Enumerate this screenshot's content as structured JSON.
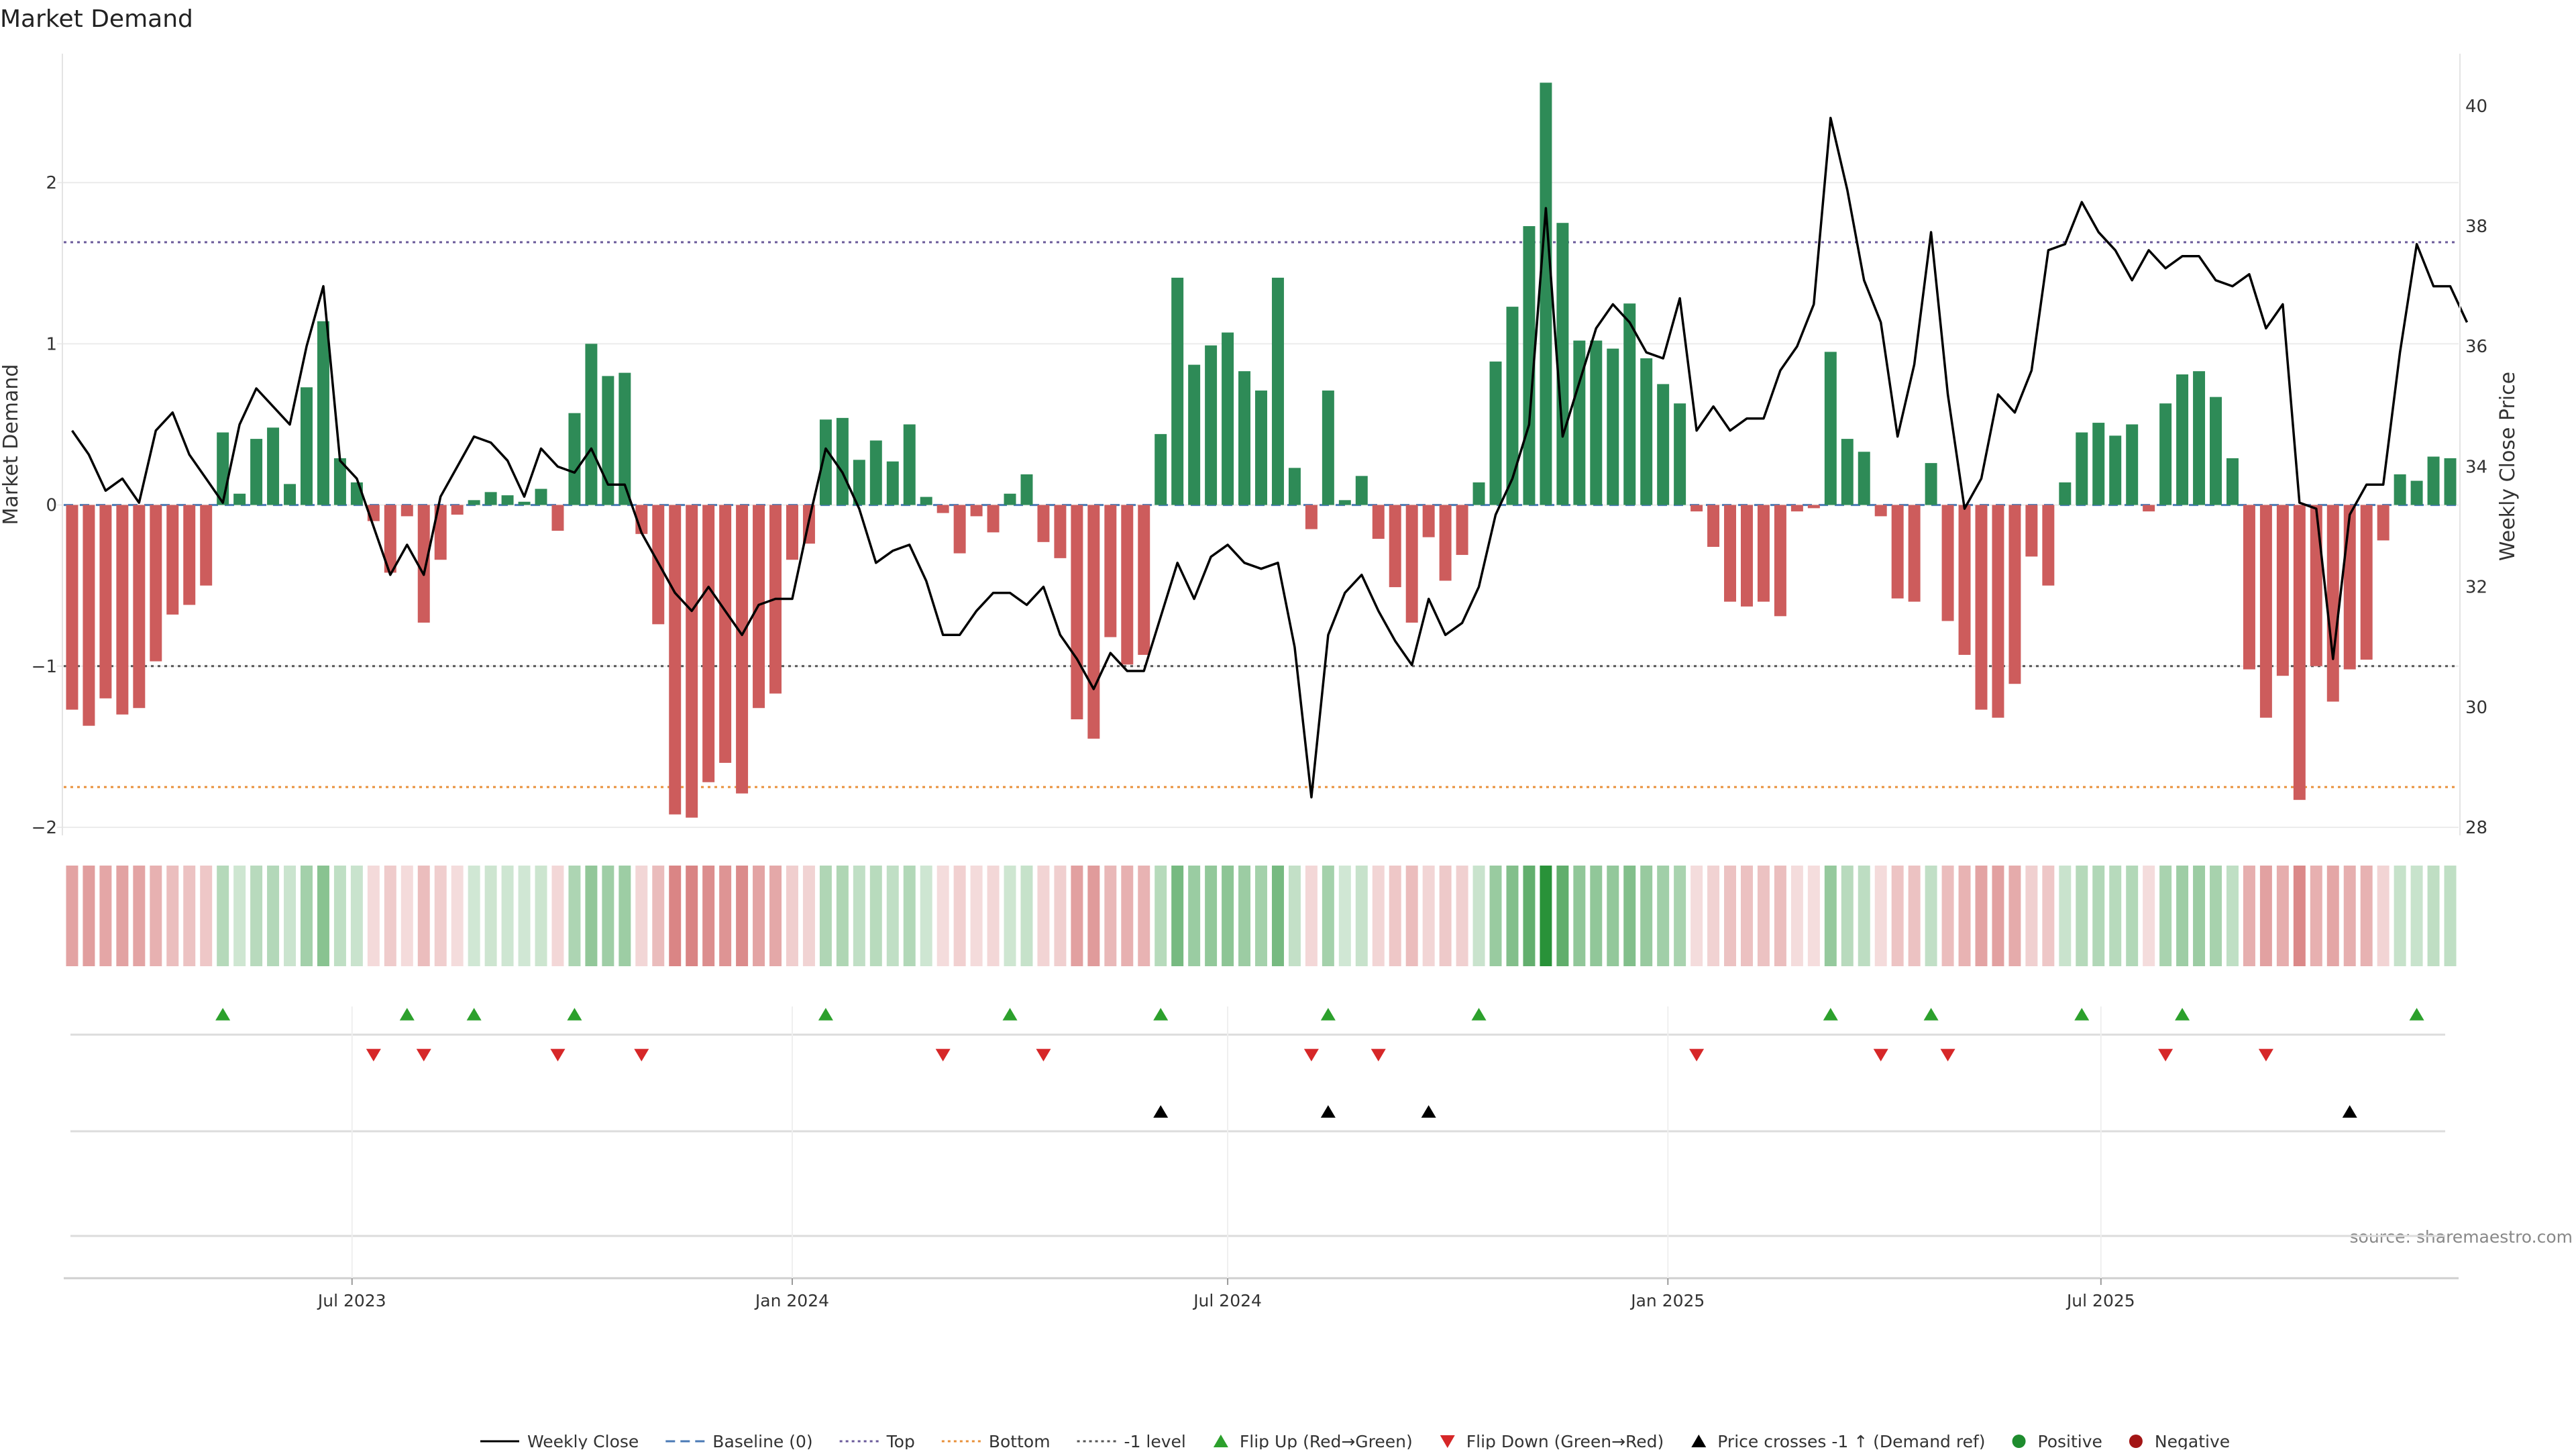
{
  "title": "Market Demand",
  "source": "source: sharemaestro.com",
  "chart_data": {
    "type": "bar",
    "title": "Market Demand",
    "x_start_week": "2023-03-06",
    "x_tick_labels": [
      "Jul 2023",
      "Jan 2024",
      "Jul 2024",
      "Jan 2025",
      "Jul 2025"
    ],
    "x_tick_dates": [
      "2023-07-01",
      "2024-01-01",
      "2024-07-01",
      "2025-01-01",
      "2025-07-01"
    ],
    "ylabel_left": "Market Demand",
    "ylabel_right": "Weekly Close Price",
    "ylim_left": [
      -2.05,
      2.8
    ],
    "ylim_right": [
      28,
      40.4
    ],
    "y_ticks_left": [
      2,
      1,
      0,
      -1,
      -2
    ],
    "y_tick_labels_left": [
      "2",
      "1",
      "0",
      "−1",
      "−2"
    ],
    "y_ticks_right": [
      40,
      38,
      36,
      34,
      32,
      30,
      28
    ],
    "y_tick_labels_right": [
      "40",
      "38",
      "36",
      "34",
      "32",
      "30",
      "28"
    ],
    "reference_lines": {
      "top": 1.63,
      "bottom": -1.75,
      "minus_one": -1.0,
      "baseline": 0
    },
    "colors": {
      "positive": "#2e8b57",
      "negative": "#cd5c5c",
      "price": "#000000",
      "top": "#6a5a9a",
      "bottom": "#e8903a",
      "baseline": "#4a7ab5",
      "flip_up": "#2ca02c",
      "flip_down": "#d62728",
      "cross": "#000000",
      "dot_pos": "#1e8c2e",
      "dot_neg": "#a31515"
    },
    "demand": [
      -1.27,
      -1.37,
      -1.2,
      -1.3,
      -1.26,
      -0.97,
      -0.68,
      -0.62,
      -0.5,
      0.45,
      0.07,
      0.41,
      0.48,
      0.13,
      0.73,
      1.14,
      0.29,
      0.14,
      -0.1,
      -0.42,
      -0.07,
      -0.73,
      -0.34,
      -0.06,
      0.03,
      0.08,
      0.06,
      0.02,
      0.1,
      -0.16,
      0.57,
      1.0,
      0.8,
      0.82,
      -0.18,
      -0.74,
      -1.92,
      -1.94,
      -1.72,
      -1.6,
      -1.79,
      -1.26,
      -1.17,
      -0.34,
      -0.24,
      0.53,
      0.54,
      0.28,
      0.4,
      0.27,
      0.5,
      0.05,
      -0.05,
      -0.3,
      -0.07,
      -0.17,
      0.07,
      0.19,
      -0.23,
      -0.33,
      -1.33,
      -1.45,
      -0.82,
      -0.99,
      -0.93,
      0.44,
      1.41,
      0.87,
      0.99,
      1.07,
      0.83,
      0.71,
      1.41,
      0.23,
      -0.15,
      0.71,
      0.03,
      0.18,
      -0.21,
      -0.51,
      -0.73,
      -0.2,
      -0.47,
      -0.31,
      0.14,
      0.89,
      1.23,
      1.73,
      2.62,
      1.75,
      1.02,
      1.02,
      0.97,
      1.25,
      0.91,
      0.75,
      0.63,
      -0.04,
      -0.26,
      -0.6,
      -0.63,
      -0.6,
      -0.69,
      -0.04,
      -0.02,
      0.95,
      0.41,
      0.33,
      -0.07,
      -0.58,
      -0.6,
      0.26,
      -0.72,
      -0.93,
      -1.27,
      -1.32,
      -1.11,
      -0.32,
      -0.5,
      0.14,
      0.45,
      0.51,
      0.43,
      0.5,
      -0.04,
      0.63,
      0.81,
      0.83,
      0.67,
      0.29,
      -1.02,
      -1.32,
      -1.06,
      -1.83,
      -1.0,
      -1.22,
      -1.02,
      -0.96,
      -0.22,
      0.19,
      0.15,
      0.3,
      0.29
    ],
    "close": [
      34.6,
      34.2,
      33.6,
      33.8,
      33.4,
      34.6,
      34.9,
      34.2,
      33.8,
      33.4,
      34.7,
      35.3,
      35.0,
      34.7,
      36.0,
      37.0,
      34.1,
      33.8,
      33.0,
      32.2,
      32.7,
      32.2,
      33.5,
      34.0,
      34.5,
      34.4,
      34.1,
      33.5,
      34.3,
      34.0,
      33.9,
      34.3,
      33.7,
      33.7,
      32.9,
      32.4,
      31.9,
      31.6,
      32.0,
      31.6,
      31.2,
      31.7,
      31.8,
      31.8,
      33.1,
      34.3,
      33.9,
      33.3,
      32.4,
      32.6,
      32.7,
      32.1,
      31.2,
      31.2,
      31.6,
      31.9,
      31.9,
      31.7,
      32.0,
      31.2,
      30.8,
      30.3,
      30.9,
      30.6,
      30.6,
      31.5,
      32.4,
      31.8,
      32.5,
      32.7,
      32.4,
      32.3,
      32.4,
      31.0,
      28.5,
      31.2,
      31.9,
      32.2,
      31.6,
      31.1,
      30.7,
      31.8,
      31.2,
      31.4,
      32.0,
      33.2,
      33.8,
      34.7,
      38.3,
      34.5,
      35.4,
      36.3,
      36.7,
      36.4,
      35.9,
      35.8,
      36.8,
      34.6,
      35.0,
      34.6,
      34.8,
      34.8,
      35.6,
      36.0,
      36.7,
      39.8,
      38.6,
      37.1,
      36.4,
      34.5,
      35.7,
      37.9,
      35.2,
      33.3,
      33.8,
      35.2,
      34.9,
      35.6,
      37.6,
      37.7,
      38.4,
      37.9,
      37.6,
      37.1,
      37.6,
      37.3,
      37.5,
      37.5,
      37.1,
      37.0,
      37.2,
      36.3,
      36.7,
      33.4,
      33.3,
      30.8,
      33.2,
      33.7,
      33.7,
      35.9,
      37.7,
      37.0,
      37.0,
      36.4
    ],
    "flip_up_weeks": [
      9,
      20,
      24,
      30,
      45,
      56,
      65,
      75,
      84,
      105,
      111,
      120,
      126,
      140
    ],
    "flip_down_weeks": [
      18,
      21,
      29,
      34,
      52,
      58,
      74,
      78,
      97,
      108,
      112,
      125,
      131
    ],
    "cross_weeks": [
      65,
      75,
      81,
      136
    ],
    "legend": [
      {
        "label": "Weekly Close",
        "kind": "line-solid"
      },
      {
        "label": "Baseline (0)",
        "kind": "line-dash"
      },
      {
        "label": "Top",
        "kind": "line-dot"
      },
      {
        "label": "Bottom",
        "kind": "line-dot-orange"
      },
      {
        "label": "-1 level",
        "kind": "line-dot-grey"
      },
      {
        "label": "Flip Up (Red→Green)",
        "kind": "tri-up-green"
      },
      {
        "label": "Flip Down (Green→Red)",
        "kind": "tri-down-red"
      },
      {
        "label": "Price crosses -1 ↑ (Demand ref)",
        "kind": "tri-up-black"
      },
      {
        "label": "Positive",
        "kind": "dot-green"
      },
      {
        "label": "Negative",
        "kind": "dot-red"
      }
    ]
  }
}
